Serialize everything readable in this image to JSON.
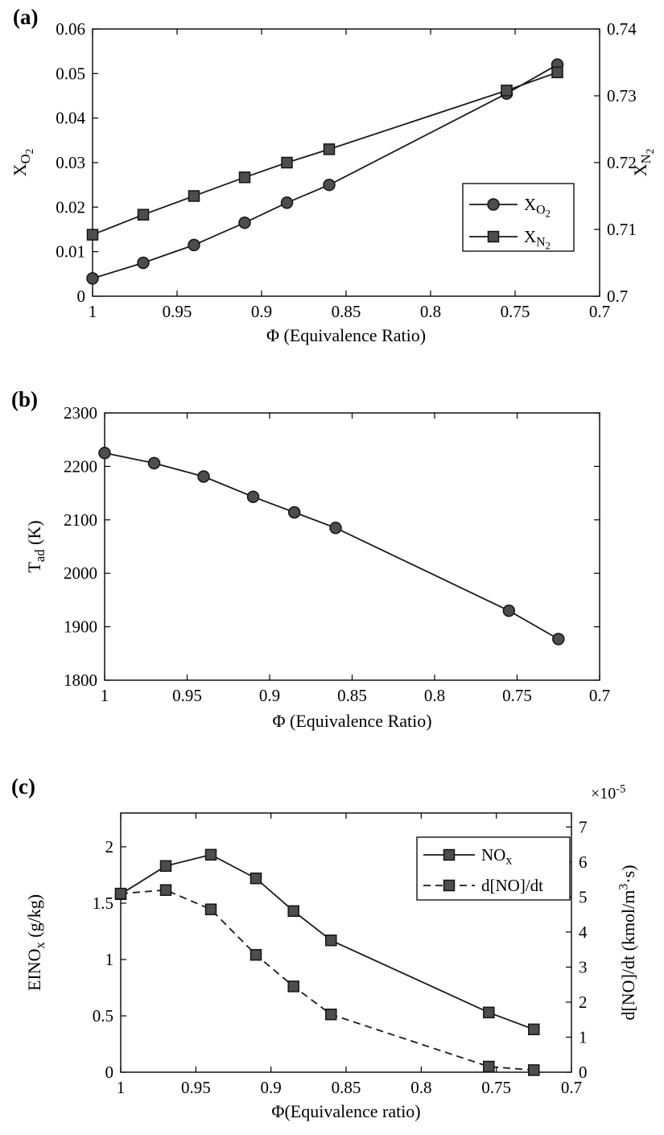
{
  "figure": {
    "background": "#ffffff"
  },
  "colors": {
    "line": "#1a1a1a",
    "axis": "#000000",
    "text": "#000000",
    "marker_fill": "#4d4d4d",
    "marker_edge": "#141414",
    "legend_bg": "#ffffff"
  },
  "panels": [
    {
      "label": "(a)"
    },
    {
      "label": "(b)"
    },
    {
      "label": "(c)"
    }
  ],
  "chart_data": [
    {
      "id": "a",
      "type": "line",
      "xlabel": "Φ (Equivalence Ratio)",
      "x_axis_reversed": true,
      "xlim": [
        1,
        0.7
      ],
      "xticks": [
        1,
        0.95,
        0.9,
        0.85,
        0.8,
        0.75,
        0.7
      ],
      "xtick_labels": [
        "1",
        "0.95",
        "0.9",
        "0.85",
        "0.8",
        "0.75",
        "0.7"
      ],
      "grid": false,
      "left_axis": {
        "label_text": "X_O2",
        "label": [
          [
            "X",
            0
          ],
          [
            "O",
            1
          ],
          [
            "2",
            2
          ]
        ],
        "lim": [
          0,
          0.06
        ],
        "ticks": [
          0,
          0.01,
          0.02,
          0.03,
          0.04,
          0.05,
          0.06
        ],
        "tick_labels": [
          "0",
          "0.01",
          "0.02",
          "0.03",
          "0.04",
          "0.05",
          "0.06"
        ]
      },
      "right_axis": {
        "label_text": "X_N2",
        "label": [
          [
            "X",
            0
          ],
          [
            "N",
            1
          ],
          [
            "2",
            2
          ]
        ],
        "lim": [
          0.7,
          0.74
        ],
        "ticks": [
          0.7,
          0.71,
          0.72,
          0.73,
          0.74
        ],
        "tick_labels": [
          "0.7",
          "0.71",
          "0.72",
          "0.73",
          "0.74"
        ]
      },
      "x": [
        1,
        0.97,
        0.94,
        0.91,
        0.885,
        0.86,
        0.755,
        0.725
      ],
      "series": [
        {
          "id": "XO2",
          "name": "X_O2",
          "axis": "left",
          "marker": "circle",
          "dash": false,
          "values": [
            0.004,
            0.0075,
            0.0115,
            0.0165,
            0.021,
            0.025,
            0.0455,
            0.052
          ]
        },
        {
          "id": "XN2",
          "name": "X_N2",
          "axis": "right",
          "marker": "square",
          "dash": false,
          "values": [
            0.7092,
            0.7122,
            0.715,
            0.7178,
            0.72,
            0.722,
            0.7308,
            0.7335
          ]
        }
      ],
      "legend": {
        "position": "right-center",
        "entries": [
          {
            "series": 0,
            "label": [
              [
                "X",
                0
              ],
              [
                "O",
                1
              ],
              [
                "2",
                2
              ]
            ]
          },
          {
            "series": 1,
            "label": [
              [
                "X",
                0
              ],
              [
                "N",
                1
              ],
              [
                "2",
                2
              ]
            ]
          }
        ]
      }
    },
    {
      "id": "b",
      "type": "line",
      "xlabel": "Φ (Equivalence Ratio)",
      "x_axis_reversed": true,
      "xlim": [
        1,
        0.7
      ],
      "xticks": [
        1,
        0.95,
        0.9,
        0.85,
        0.8,
        0.75,
        0.7
      ],
      "xtick_labels": [
        "1",
        "0.95",
        "0.9",
        "0.85",
        "0.8",
        "0.75",
        "0.7"
      ],
      "grid": false,
      "left_axis": {
        "label_text": "T_ad (K)",
        "label": [
          [
            "T",
            0
          ],
          [
            "ad",
            1
          ],
          [
            " (K)",
            0
          ]
        ],
        "lim": [
          1800,
          2300
        ],
        "ticks": [
          1800,
          1900,
          2000,
          2100,
          2200,
          2300
        ],
        "tick_labels": [
          "1800",
          "1900",
          "2000",
          "2100",
          "2200",
          "2300"
        ]
      },
      "x": [
        1,
        0.97,
        0.94,
        0.91,
        0.885,
        0.86,
        0.755,
        0.725
      ],
      "series": [
        {
          "id": "Tad",
          "name": "T_ad",
          "axis": "left",
          "marker": "circle",
          "dash": false,
          "values": [
            2225,
            2206,
            2181,
            2143,
            2114,
            2085,
            1930,
            1877
          ]
        }
      ],
      "legend": null
    },
    {
      "id": "c",
      "type": "line",
      "xlabel": "Φ(Equivalence ratio)",
      "x_axis_reversed": true,
      "xlim": [
        1,
        0.7
      ],
      "xticks": [
        1,
        0.95,
        0.9,
        0.85,
        0.8,
        0.75,
        0.7
      ],
      "xtick_labels": [
        "1",
        "0.95",
        "0.9",
        "0.85",
        "0.8",
        "0.75",
        "0.7"
      ],
      "grid": false,
      "left_axis": {
        "label_text": "EINO_x (g/kg)",
        "label": [
          [
            "EINO",
            0
          ],
          [
            "x",
            1
          ],
          [
            " (g/kg)",
            0
          ]
        ],
        "lim": [
          0,
          2.3
        ],
        "ticks": [
          0,
          0.5,
          1,
          1.5,
          2
        ],
        "tick_labels": [
          "0",
          "0.5",
          "1",
          "1.5",
          "2"
        ]
      },
      "right_axis": {
        "label_text": "d[NO]/dt (kmol/m3·s)",
        "label": [
          [
            "d[NO]/dt (kmol/m",
            0
          ],
          [
            "3",
            -1
          ],
          [
            "·s)",
            0
          ]
        ],
        "exponent_text": "×10^-5",
        "exponent": [
          [
            "×10",
            0
          ],
          [
            "-5",
            -1
          ]
        ],
        "lim": [
          0,
          7.4
        ],
        "ticks": [
          0,
          1,
          2,
          3,
          4,
          5,
          6,
          7
        ],
        "tick_labels": [
          "0",
          "1",
          "2",
          "3",
          "4",
          "5",
          "6",
          "7"
        ]
      },
      "x": [
        1,
        0.97,
        0.94,
        0.91,
        0.885,
        0.86,
        0.755,
        0.725
      ],
      "series": [
        {
          "id": "NOx",
          "name": "NO_x",
          "axis": "left",
          "marker": "square",
          "dash": false,
          "values": [
            1.58,
            1.83,
            1.93,
            1.72,
            1.43,
            1.17,
            0.53,
            0.38
          ]
        },
        {
          "id": "dNOdt",
          "name": "d[NO]/dt",
          "axis": "right",
          "marker": "square",
          "dash": true,
          "values": [
            5.1,
            5.2,
            4.65,
            3.35,
            2.45,
            1.65,
            0.16,
            0.06
          ]
        }
      ],
      "legend": {
        "position": "top-right",
        "entries": [
          {
            "series": 0,
            "label": [
              [
                "NO",
                0
              ],
              [
                "x",
                1
              ]
            ]
          },
          {
            "series": 1,
            "label": [
              [
                "d[NO]/dt",
                0
              ]
            ]
          }
        ]
      }
    }
  ]
}
